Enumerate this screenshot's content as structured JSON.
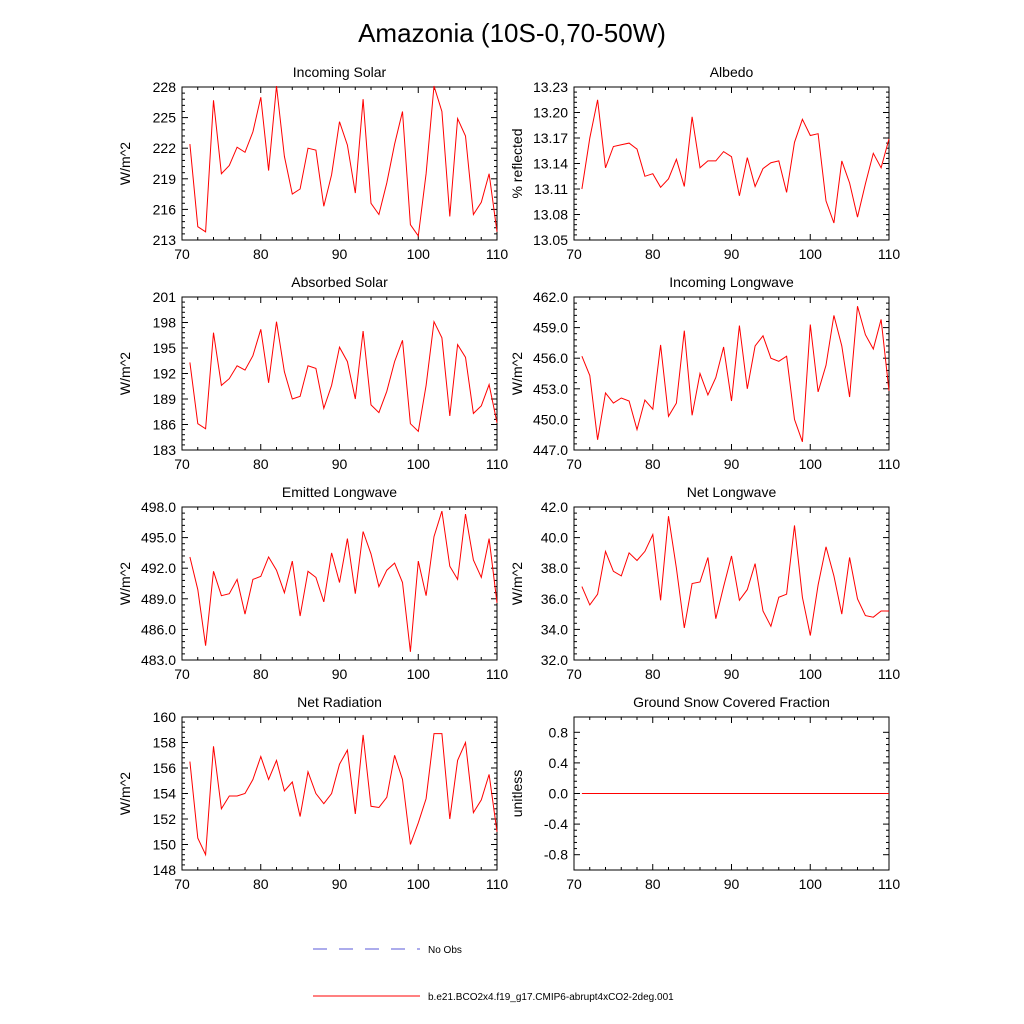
{
  "figure": {
    "title": "Amazonia (10S-0,70-50W)",
    "series_color": "#ff0000",
    "obs_color": "#5a5ad8",
    "frame_color": "#000000"
  },
  "legend": {
    "obs_label": "No Obs",
    "model_label": "b.e21.BCO2x4.f19_g17.CMIP6-abrupt4xCO2-2deg.001"
  },
  "chart_data": [
    {
      "type": "line",
      "title": "Incoming Solar",
      "xlabel": "",
      "ylabel": "W/m^2",
      "xlim": [
        70,
        110
      ],
      "ylim": [
        213,
        228
      ],
      "xticks": [
        70,
        80,
        90,
        100,
        110
      ],
      "xtick_labels": [
        "70",
        "80",
        "90",
        "100",
        "110"
      ],
      "yticks": [
        213,
        216,
        219,
        222,
        225,
        228
      ],
      "ytick_labels": [
        "213",
        "216",
        "219",
        "222",
        "225",
        "228"
      ],
      "x": [
        71,
        72,
        73,
        74,
        75,
        76,
        77,
        78,
        79,
        80,
        81,
        82,
        83,
        84,
        85,
        86,
        87,
        88,
        89,
        90,
        91,
        92,
        93,
        94,
        95,
        96,
        97,
        98,
        99,
        100,
        101,
        102,
        103,
        104,
        105,
        106,
        107,
        108,
        109,
        110
      ],
      "values": [
        222.4,
        214.3,
        213.8,
        226.7,
        219.5,
        220.3,
        222.1,
        221.6,
        223.6,
        227.0,
        219.8,
        228.1,
        221.2,
        217.5,
        218.0,
        222.0,
        221.8,
        216.3,
        219.4,
        224.6,
        222.3,
        217.6,
        226.8,
        216.6,
        215.5,
        218.6,
        222.4,
        225.6,
        214.5,
        213.4,
        219.5,
        228.1,
        225.6,
        215.3,
        224.9,
        223.2,
        215.5,
        216.7,
        219.5,
        213.8
      ]
    },
    {
      "type": "line",
      "title": "Albedo",
      "xlabel": "",
      "ylabel": "% reflected",
      "xlim": [
        70,
        110
      ],
      "ylim": [
        13.05,
        13.23
      ],
      "xticks": [
        70,
        80,
        90,
        100,
        110
      ],
      "xtick_labels": [
        "70",
        "80",
        "90",
        "100",
        "110"
      ],
      "yticks": [
        13.05,
        13.08,
        13.11,
        13.14,
        13.17,
        13.2,
        13.23
      ],
      "ytick_labels": [
        "13.05",
        "13.08",
        "13.11",
        "13.14",
        "13.17",
        "13.20",
        "13.23"
      ],
      "x": [
        71,
        72,
        73,
        74,
        75,
        76,
        77,
        78,
        79,
        80,
        81,
        82,
        83,
        84,
        85,
        86,
        87,
        88,
        89,
        90,
        91,
        92,
        93,
        94,
        95,
        96,
        97,
        98,
        99,
        100,
        101,
        102,
        103,
        104,
        105,
        106,
        107,
        108,
        109,
        110
      ],
      "values": [
        13.11,
        13.17,
        13.215,
        13.135,
        13.16,
        13.162,
        13.164,
        13.157,
        13.125,
        13.128,
        13.112,
        13.122,
        13.145,
        13.113,
        13.195,
        13.135,
        13.143,
        13.143,
        13.154,
        13.148,
        13.102,
        13.147,
        13.113,
        13.134,
        13.141,
        13.143,
        13.106,
        13.165,
        13.192,
        13.173,
        13.175,
        13.096,
        13.07,
        13.143,
        13.117,
        13.077,
        13.116,
        13.152,
        13.135,
        13.169
      ]
    },
    {
      "type": "line",
      "title": "Absorbed Solar",
      "xlabel": "",
      "ylabel": "W/m^2",
      "xlim": [
        70,
        110
      ],
      "ylim": [
        183,
        201
      ],
      "xticks": [
        70,
        80,
        90,
        100,
        110
      ],
      "xtick_labels": [
        "70",
        "80",
        "90",
        "100",
        "110"
      ],
      "yticks": [
        183,
        186,
        189,
        192,
        195,
        198,
        201
      ],
      "ytick_labels": [
        "183",
        "186",
        "189",
        "192",
        "195",
        "198",
        "201"
      ],
      "x": [
        71,
        72,
        73,
        74,
        75,
        76,
        77,
        78,
        79,
        80,
        81,
        82,
        83,
        84,
        85,
        86,
        87,
        88,
        89,
        90,
        91,
        92,
        93,
        94,
        95,
        96,
        97,
        98,
        99,
        100,
        101,
        102,
        103,
        104,
        105,
        106,
        107,
        108,
        109,
        110
      ],
      "values": [
        193.3,
        186.1,
        185.5,
        196.8,
        190.6,
        191.4,
        192.9,
        192.4,
        194.1,
        197.2,
        190.9,
        198.1,
        192.2,
        189.0,
        189.3,
        192.9,
        192.6,
        187.9,
        190.6,
        195.1,
        193.4,
        189.0,
        197.0,
        188.3,
        187.4,
        189.9,
        193.4,
        195.9,
        186.1,
        185.2,
        190.6,
        198.1,
        196.2,
        187.0,
        195.4,
        193.9,
        187.3,
        188.2,
        190.7,
        186.2
      ]
    },
    {
      "type": "line",
      "title": "Incoming Longwave",
      "xlabel": "",
      "ylabel": "W/m^2",
      "xlim": [
        70,
        110
      ],
      "ylim": [
        447.0,
        462.0
      ],
      "xticks": [
        70,
        80,
        90,
        100,
        110
      ],
      "xtick_labels": [
        "70",
        "80",
        "90",
        "100",
        "110"
      ],
      "yticks": [
        447,
        450,
        453,
        456,
        459,
        462
      ],
      "ytick_labels": [
        "447.0",
        "450.0",
        "453.0",
        "456.0",
        "459.0",
        "462.0"
      ],
      "x": [
        71,
        72,
        73,
        74,
        75,
        76,
        77,
        78,
        79,
        80,
        81,
        82,
        83,
        84,
        85,
        86,
        87,
        88,
        89,
        90,
        91,
        92,
        93,
        94,
        95,
        96,
        97,
        98,
        99,
        100,
        101,
        102,
        103,
        104,
        105,
        106,
        107,
        108,
        109,
        110
      ],
      "values": [
        456.2,
        454.3,
        448.0,
        452.6,
        451.6,
        452.1,
        451.8,
        449.0,
        451.9,
        451.0,
        457.3,
        450.3,
        451.6,
        458.7,
        450.4,
        454.5,
        452.4,
        454.1,
        457.1,
        451.8,
        459.2,
        453.0,
        457.2,
        458.2,
        456.0,
        455.7,
        456.2,
        450.0,
        447.8,
        459.3,
        452.7,
        455.3,
        460.2,
        457.2,
        452.2,
        461.1,
        458.3,
        456.9,
        459.8,
        452.8
      ]
    },
    {
      "type": "line",
      "title": "Emitted Longwave",
      "xlabel": "",
      "ylabel": "W/m^2",
      "xlim": [
        70,
        110
      ],
      "ylim": [
        483.0,
        498.0
      ],
      "xticks": [
        70,
        80,
        90,
        100,
        110
      ],
      "xtick_labels": [
        "70",
        "80",
        "90",
        "100",
        "110"
      ],
      "yticks": [
        483,
        486,
        489,
        492,
        495,
        498
      ],
      "ytick_labels": [
        "483.0",
        "486.0",
        "489.0",
        "492.0",
        "495.0",
        "498.0"
      ],
      "x": [
        71,
        72,
        73,
        74,
        75,
        76,
        77,
        78,
        79,
        80,
        81,
        82,
        83,
        84,
        85,
        86,
        87,
        88,
        89,
        90,
        91,
        92,
        93,
        94,
        95,
        96,
        97,
        98,
        99,
        100,
        101,
        102,
        103,
        104,
        105,
        106,
        107,
        108,
        109,
        110
      ],
      "values": [
        493.1,
        489.9,
        484.4,
        491.7,
        489.3,
        489.5,
        490.9,
        487.5,
        490.9,
        491.2,
        493.1,
        491.8,
        489.6,
        492.7,
        487.3,
        491.7,
        491.1,
        488.7,
        493.5,
        490.6,
        494.9,
        489.5,
        495.6,
        493.4,
        490.2,
        491.8,
        492.5,
        490.6,
        483.8,
        492.7,
        489.3,
        495.1,
        497.6,
        492.2,
        490.9,
        497.3,
        492.8,
        491.1,
        494.9,
        488.6
      ]
    },
    {
      "type": "line",
      "title": "Net Longwave",
      "xlabel": "",
      "ylabel": "W/m^2",
      "xlim": [
        70,
        110
      ],
      "ylim": [
        32.0,
        42.0
      ],
      "xticks": [
        70,
        80,
        90,
        100,
        110
      ],
      "xtick_labels": [
        "70",
        "80",
        "90",
        "100",
        "110"
      ],
      "yticks": [
        32,
        34,
        36,
        38,
        40,
        42
      ],
      "ytick_labels": [
        "32.0",
        "34.0",
        "36.0",
        "38.0",
        "40.0",
        "42.0"
      ],
      "x": [
        71,
        72,
        73,
        74,
        75,
        76,
        77,
        78,
        79,
        80,
        81,
        82,
        83,
        84,
        85,
        86,
        87,
        88,
        89,
        90,
        91,
        92,
        93,
        94,
        95,
        96,
        97,
        98,
        99,
        100,
        101,
        102,
        103,
        104,
        105,
        106,
        107,
        108,
        109,
        110
      ],
      "values": [
        36.8,
        35.6,
        36.3,
        39.1,
        37.8,
        37.5,
        39.0,
        38.5,
        39.1,
        40.2,
        35.9,
        41.4,
        38.0,
        34.1,
        37.0,
        37.1,
        38.7,
        34.7,
        36.8,
        38.8,
        35.9,
        36.6,
        38.3,
        35.2,
        34.2,
        36.1,
        36.3,
        40.8,
        36.1,
        33.6,
        36.9,
        39.4,
        37.5,
        35.0,
        38.7,
        36.0,
        34.9,
        34.8,
        35.2,
        35.2
      ]
    },
    {
      "type": "line",
      "title": "Net Radiation",
      "xlabel": "",
      "ylabel": "W/m^2",
      "xlim": [
        70,
        110
      ],
      "ylim": [
        148,
        160
      ],
      "xticks": [
        70,
        80,
        90,
        100,
        110
      ],
      "xtick_labels": [
        "70",
        "80",
        "90",
        "100",
        "110"
      ],
      "yticks": [
        148,
        150,
        152,
        154,
        156,
        158,
        160
      ],
      "ytick_labels": [
        "148",
        "150",
        "152",
        "154",
        "156",
        "158",
        "160"
      ],
      "x": [
        71,
        72,
        73,
        74,
        75,
        76,
        77,
        78,
        79,
        80,
        81,
        82,
        83,
        84,
        85,
        86,
        87,
        88,
        89,
        90,
        91,
        92,
        93,
        94,
        95,
        96,
        97,
        98,
        99,
        100,
        101,
        102,
        103,
        104,
        105,
        106,
        107,
        108,
        109,
        110
      ],
      "values": [
        156.5,
        150.5,
        149.2,
        157.7,
        152.8,
        153.8,
        153.8,
        154.0,
        155.1,
        156.9,
        155.1,
        156.6,
        154.2,
        154.9,
        152.2,
        155.7,
        154.0,
        153.2,
        154.0,
        156.3,
        157.4,
        152.4,
        158.6,
        153.0,
        152.9,
        153.7,
        157.0,
        155.1,
        150.0,
        151.7,
        153.6,
        158.7,
        158.7,
        152.0,
        156.6,
        158.0,
        152.5,
        153.5,
        155.5,
        151.0
      ]
    },
    {
      "type": "line",
      "title": "Ground Snow Covered Fraction",
      "xlabel": "",
      "ylabel": "unitless",
      "xlim": [
        70,
        110
      ],
      "ylim": [
        -1.0,
        1.0
      ],
      "xticks": [
        70,
        80,
        90,
        100,
        110
      ],
      "xtick_labels": [
        "70",
        "80",
        "90",
        "100",
        "110"
      ],
      "yticks": [
        -0.8,
        -0.4,
        0.0,
        0.4,
        0.8
      ],
      "ytick_labels": [
        "-0.8",
        "-0.4",
        "0.0",
        "0.4",
        "0.8"
      ],
      "x": [
        71,
        72,
        73,
        74,
        75,
        76,
        77,
        78,
        79,
        80,
        81,
        82,
        83,
        84,
        85,
        86,
        87,
        88,
        89,
        90,
        91,
        92,
        93,
        94,
        95,
        96,
        97,
        98,
        99,
        100,
        101,
        102,
        103,
        104,
        105,
        106,
        107,
        108,
        109,
        110
      ],
      "values": [
        0,
        0,
        0,
        0,
        0,
        0,
        0,
        0,
        0,
        0,
        0,
        0,
        0,
        0,
        0,
        0,
        0,
        0,
        0,
        0,
        0,
        0,
        0,
        0,
        0,
        0,
        0,
        0,
        0,
        0,
        0,
        0,
        0,
        0,
        0,
        0,
        0,
        0,
        0,
        0
      ]
    }
  ]
}
